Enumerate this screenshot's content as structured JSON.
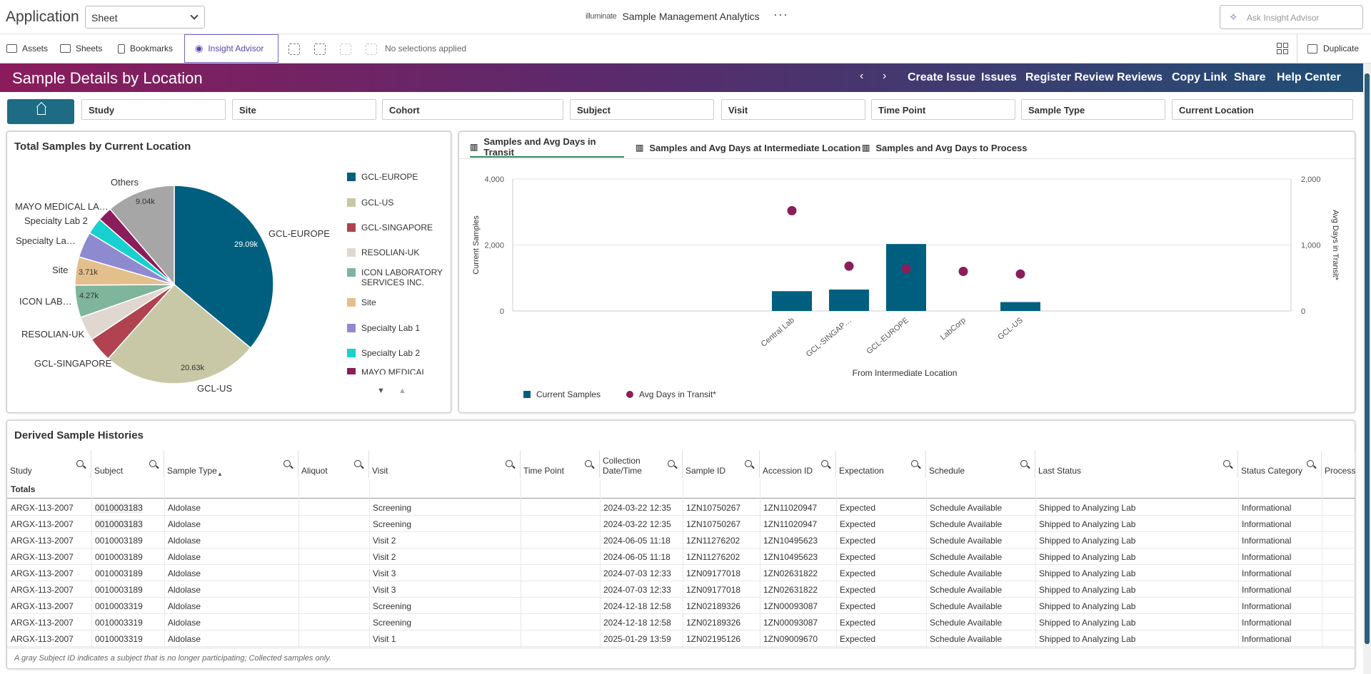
{
  "topbar": {
    "app_label": "Application",
    "sheet_select": "Sheet",
    "brand_logo": "illuminate",
    "title": "Sample Management Analytics",
    "more": "···",
    "ask_placeholder": "Ask Insight Advisor"
  },
  "toolbar": {
    "assets": "Assets",
    "sheets": "Sheets",
    "bookmarks": "Bookmarks",
    "insight_advisor": "Insight Advisor",
    "no_selections": "No selections applied",
    "duplicate": "Duplicate"
  },
  "header": {
    "title": "Sample Details by Location",
    "nav": [
      "Create Issue",
      "Issues",
      "Register Review",
      "Reviews",
      "Copy Link",
      "Share",
      "Help Center"
    ]
  },
  "filters": [
    "Study",
    "Site",
    "Cohort",
    "Subject",
    "Visit",
    "Time Point",
    "Sample Type",
    "Current Location"
  ],
  "pie_panel": {
    "title": "Total Samples by Current Location",
    "labels": [
      "GCL-EUROPE",
      "GCL-US",
      "GCL-SINGAPORE",
      "RESOLIAN-UK",
      "ICON LAB…",
      "Site",
      "Specialty La…",
      "Specialty Lab 2",
      "MAYO MEDICAL LA…",
      "Others"
    ],
    "value_labels": [
      "29.09k",
      "20.63k",
      "4.27k",
      "3.71k",
      "9.04k"
    ],
    "legend": [
      {
        "label": "GCL-EUROPE",
        "color": "#005f7f"
      },
      {
        "label": "GCL-US",
        "color": "#c8c8a6"
      },
      {
        "label": "GCL-SINGAPORE",
        "color": "#b0434f"
      },
      {
        "label": "RESOLIAN-UK",
        "color": "#e0d8d0"
      },
      {
        "label": "ICON LABORATORY SERVICES INC.",
        "color": "#7fb59a"
      },
      {
        "label": "Site",
        "color": "#e3bf8b"
      },
      {
        "label": "Specialty Lab 1",
        "color": "#8e8ad0"
      },
      {
        "label": "Specialty Lab 2",
        "color": "#18d0d0"
      },
      {
        "label": "MAYO MEDICAL LABS-",
        "color": "#8a1d5a"
      }
    ]
  },
  "chart_panel": {
    "tabs": [
      "Samples and Avg Days in Transit",
      "Samples and Avg Days at Intermediate Location",
      "Samples and Avg Days to Process"
    ],
    "legend_bar": "Current Samples",
    "legend_dot": "Avg Days in Transit*"
  },
  "chart_data": {
    "type": "bar",
    "categories": [
      "Central Lab",
      "GCL-SINGAP…",
      "GCL-EUROPE",
      "LabCorp",
      "GCL-US"
    ],
    "xlabel": "From Intermediate Location",
    "ylabel": "Current Samples",
    "y2label": "Avg Days in Transit*",
    "ylim": [
      0,
      4000
    ],
    "y2lim": [
      0,
      2000
    ],
    "yticks": [
      "4,000",
      "2,000",
      "0"
    ],
    "y2ticks": [
      "2,000",
      "1,000",
      "0"
    ],
    "series": [
      {
        "name": "Current Samples",
        "type": "bar",
        "axis": "left",
        "values": [
          600,
          650,
          2030,
          0,
          270
        ],
        "color": "#005f7f"
      },
      {
        "name": "Avg Days in Transit*",
        "type": "scatter",
        "axis": "right",
        "values": [
          1520,
          680,
          640,
          600,
          560
        ],
        "color": "#8a1d5a"
      }
    ]
  },
  "table_panel": {
    "title": "Derived Sample Histories",
    "columns": [
      "Study",
      "Subject",
      "Sample Type",
      "Aliquot",
      "Visit",
      "Time Point",
      "Collection Date/Time",
      "Sample ID",
      "Accession ID",
      "Expectation",
      "Schedule",
      "Last Status",
      "Status Category",
      "Process"
    ],
    "totals_label": "Totals",
    "rows": [
      [
        "ARGX-113-2007",
        "0010003183",
        "Aldolase",
        "",
        "Screening",
        "",
        "2024-03-22 12:35",
        "1ZN10750267",
        "1ZN11020947",
        "Expected",
        "Schedule Available",
        "Shipped to Analyzing Lab",
        "Informational"
      ],
      [
        "ARGX-113-2007",
        "0010003183",
        "Aldolase",
        "",
        "Screening",
        "",
        "2024-03-22 12:35",
        "1ZN10750267",
        "1ZN11020947",
        "Expected",
        "Schedule Available",
        "Shipped to Analyzing Lab",
        "Informational"
      ],
      [
        "ARGX-113-2007",
        "0010003189",
        "Aldolase",
        "",
        "Visit 2",
        "",
        "2024-06-05 11:18",
        "1ZN11276202",
        "1ZN10495623",
        "Expected",
        "Schedule Available",
        "Shipped to Analyzing Lab",
        "Informational"
      ],
      [
        "ARGX-113-2007",
        "0010003189",
        "Aldolase",
        "",
        "Visit 2",
        "",
        "2024-06-05 11:18",
        "1ZN11276202",
        "1ZN10495623",
        "Expected",
        "Schedule Available",
        "Shipped to Analyzing Lab",
        "Informational"
      ],
      [
        "ARGX-113-2007",
        "0010003189",
        "Aldolase",
        "",
        "Visit 3",
        "",
        "2024-07-03 12:33",
        "1ZN09177018",
        "1ZN02631822",
        "Expected",
        "Schedule Available",
        "Shipped to Analyzing Lab",
        "Informational"
      ],
      [
        "ARGX-113-2007",
        "0010003189",
        "Aldolase",
        "",
        "Visit 3",
        "",
        "2024-07-03 12:33",
        "1ZN09177018",
        "1ZN02631822",
        "Expected",
        "Schedule Available",
        "Shipped to Analyzing Lab",
        "Informational"
      ],
      [
        "ARGX-113-2007",
        "0010003319",
        "Aldolase",
        "",
        "Screening",
        "",
        "2024-12-18 12:58",
        "1ZN02189326",
        "1ZN00093087",
        "Expected",
        "Schedule Available",
        "Shipped to Analyzing Lab",
        "Informational"
      ],
      [
        "ARGX-113-2007",
        "0010003319",
        "Aldolase",
        "",
        "Screening",
        "",
        "2024-12-18 12:58",
        "1ZN02189326",
        "1ZN00093087",
        "Expected",
        "Schedule Available",
        "Shipped to Analyzing Lab",
        "Informational"
      ],
      [
        "ARGX-113-2007",
        "0010003319",
        "Aldolase",
        "",
        "Visit 1",
        "",
        "2025-01-29 13:59",
        "1ZN02195126",
        "1ZN09009670",
        "Expected",
        "Schedule Available",
        "Shipped to Analyzing Lab",
        "Informational"
      ]
    ],
    "footnote": "A gray Subject ID indicates a subject that is no longer participating; Collected samples only."
  }
}
